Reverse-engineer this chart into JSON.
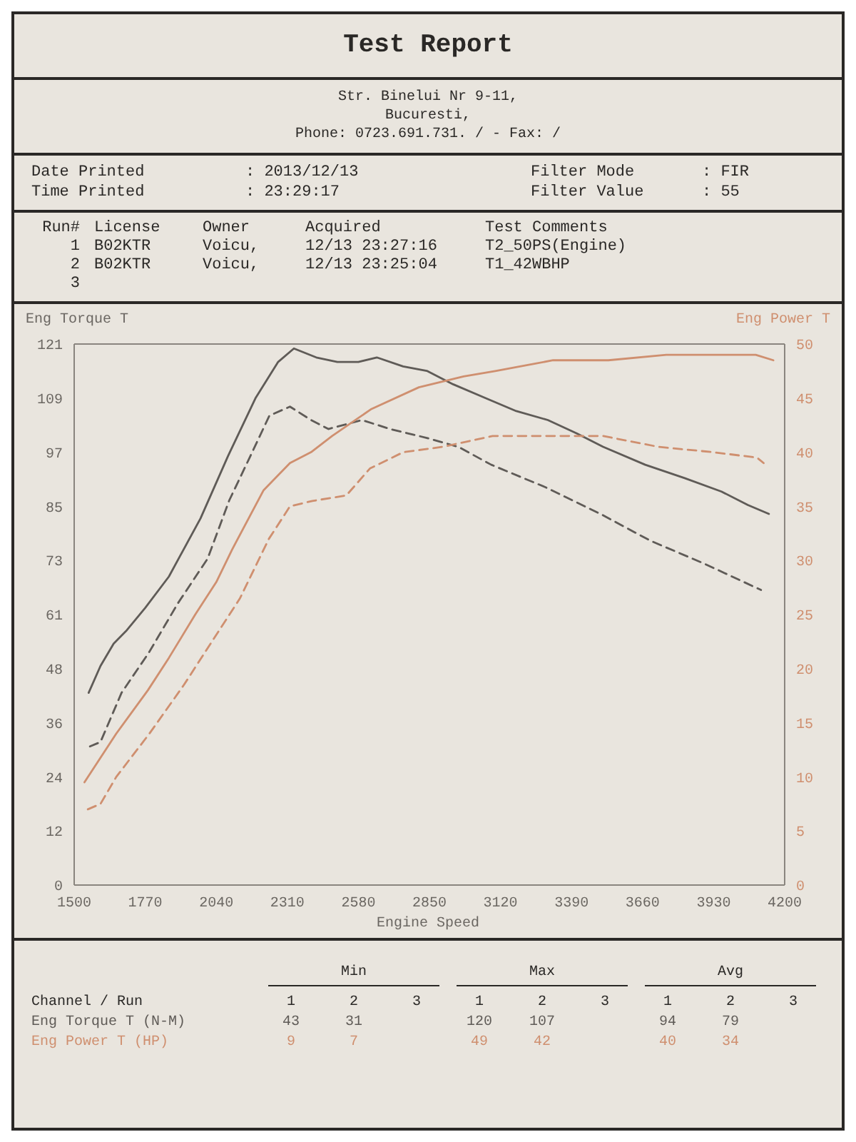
{
  "chart_data": {
    "type": "line",
    "title": "Test Report",
    "xlabel": "Engine Speed",
    "ylabel": "Eng Torque T",
    "y2label": "Eng Power T",
    "xlim": [
      1500,
      4200
    ],
    "xticks": [
      1500,
      1770,
      2040,
      2310,
      2580,
      2850,
      3120,
      3390,
      3660,
      3930,
      4200
    ],
    "ylim": [
      0,
      121
    ],
    "yticks": [
      0,
      {
        "value": 12.1,
        "label": "12"
      },
      {
        "value": 24.2,
        "label": "24"
      },
      {
        "value": 36.3,
        "label": "36"
      },
      {
        "value": 48.4,
        "label": "48"
      },
      {
        "value": 60.5,
        "label": "61"
      },
      {
        "value": 72.6,
        "label": "73"
      },
      {
        "value": 84.7,
        "label": "85"
      },
      {
        "value": 96.8,
        "label": "97"
      },
      {
        "value": 108.9,
        "label": "109"
      },
      121
    ],
    "y2lim": [
      0,
      50
    ],
    "y2ticks": [
      0,
      5,
      10,
      15,
      20,
      25,
      30,
      35,
      40,
      45,
      50
    ],
    "series": [
      {
        "color": "#5f5b57",
        "line_style": "solid",
        "x": [
          1555,
          1600,
          1650,
          1700,
          1770,
          1860,
          1980,
          2085,
          2190,
          2275,
          2335,
          2420,
          2500,
          2580,
          2650,
          2750,
          2840,
          2940,
          3060,
          3180,
          3300,
          3410,
          3510,
          3670,
          3820,
          3960,
          4060,
          4140
        ],
        "values": [
          43,
          49,
          54,
          57,
          62,
          69,
          82,
          96,
          109,
          117,
          120,
          118,
          117,
          117,
          118,
          116,
          115,
          112,
          109,
          106,
          104,
          101,
          98,
          94,
          91,
          88,
          85,
          83
        ]
      },
      {
        "color": "#5f5b57",
        "line_style": "dashed",
        "x": [
          1560,
          1600,
          1680,
          1784,
          1894,
          2007,
          2089,
          2170,
          2242,
          2320,
          2400,
          2466,
          2594,
          2700,
          2840,
          2960,
          3085,
          3290,
          3500,
          3690,
          3890,
          4110
        ],
        "values": [
          31,
          32,
          43,
          52,
          63,
          73,
          86,
          96,
          105,
          107,
          104,
          102,
          104,
          102,
          100,
          98,
          94,
          89,
          83,
          77,
          72,
          66
        ]
      },
      {
        "color": "#cf8f6f",
        "line_style": "solid",
        "axis": "y2",
        "x": [
          1539,
          1660,
          1780,
          1860,
          1960,
          2040,
          2100,
          2220,
          2320,
          2400,
          2480,
          2630,
          2810,
          2980,
          3100,
          3320,
          3530,
          3750,
          3960,
          4090,
          4157
        ],
        "values": [
          9.5,
          14,
          18,
          21,
          25,
          28,
          31,
          36.5,
          39,
          40,
          41.5,
          44,
          46,
          47,
          47.5,
          48.5,
          48.5,
          49,
          49,
          49,
          48.5
        ]
      },
      {
        "color": "#cf8f6f",
        "line_style": "dashed",
        "axis": "y2",
        "x": [
          1552,
          1600,
          1660,
          1786,
          1917,
          2050,
          2130,
          2240,
          2320,
          2405,
          2534,
          2624,
          2750,
          2900,
          3090,
          3300,
          3510,
          3720,
          3930,
          4095,
          4120
        ],
        "values": [
          7,
          7.5,
          10,
          14,
          18.5,
          23.5,
          26.5,
          32,
          35,
          35.5,
          36,
          38.5,
          40,
          40.5,
          41.5,
          41.5,
          41.5,
          40.5,
          40,
          39.5,
          39
        ]
      }
    ],
    "annotations": [
      "Str. Binelui Nr 9-11,",
      "Bucuresti,",
      "Phone: 0723.691.731. / - Fax: /",
      "Date Printed",
      ": 2013/12/13",
      "Filter Mode",
      ": FIR",
      "Time Printed",
      ": 23:29:17",
      "Filter Value",
      ": 55",
      "Run#",
      "License",
      "Owner",
      "Acquired",
      "Test Comments",
      "1",
      "B02KTR",
      "Voicu,",
      "12/13 23:27:16",
      "T2_50PS(Engine)",
      "2",
      "B02KTR",
      "Voicu,",
      "12/13 23:25:04",
      "T1_42WBHP",
      "3",
      "Min",
      "Max",
      "Avg",
      "1",
      "2",
      "3",
      "1",
      "2",
      "3",
      "1",
      "2",
      "3",
      "Channel / Run",
      "Eng Torque T (N-M)",
      "Eng Power T (HP)",
      "43",
      "31",
      "120",
      "107",
      "94",
      "79",
      "9",
      "7",
      "49",
      "42",
      "40",
      "34"
    ]
  }
}
